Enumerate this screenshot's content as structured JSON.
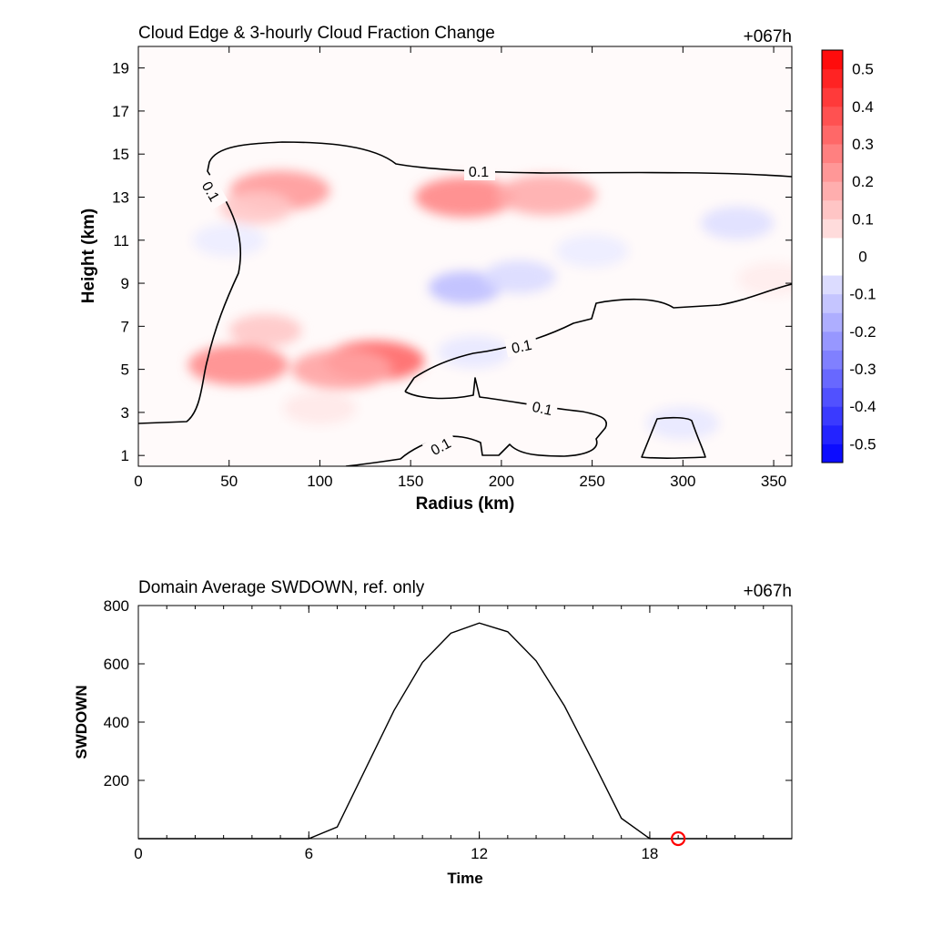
{
  "chart_data": [
    {
      "type": "heatmap",
      "title": "Cloud Edge & 3-hourly Cloud Fraction Change",
      "time_label": "+067h",
      "xlabel": "Radius (km)",
      "ylabel": "Height (km)",
      "xlim": [
        0,
        360
      ],
      "ylim": [
        0.5,
        20
      ],
      "xticks": [
        "0",
        "50",
        "100",
        "150",
        "200",
        "250",
        "300",
        "350"
      ],
      "yticks": [
        "1",
        "3",
        "5",
        "7",
        "9",
        "11",
        "13",
        "15",
        "17",
        "19"
      ],
      "colorbar": {
        "min": -0.55,
        "max": 0.55,
        "step": 0.05,
        "labels": [
          "0.5",
          "0.4",
          "0.3",
          "0.2",
          "0.1",
          "0",
          "-0.1",
          "-0.2",
          "-0.3",
          "-0.4",
          "-0.5"
        ],
        "high_color": "#ff0000",
        "low_color": "#0000ff"
      },
      "contour_level_label": "0.1",
      "anomalies": [
        {
          "r": 78,
          "z": 13.3,
          "value": 0.22
        },
        {
          "r": 65,
          "z": 12.5,
          "value": 0.12
        },
        {
          "r": 180,
          "z": 13.0,
          "value": 0.26
        },
        {
          "r": 225,
          "z": 13.1,
          "value": 0.18
        },
        {
          "r": 130,
          "z": 5.4,
          "value": 0.33
        },
        {
          "r": 112,
          "z": 5.0,
          "value": 0.2
        },
        {
          "r": 55,
          "z": 5.2,
          "value": 0.25
        },
        {
          "r": 70,
          "z": 6.8,
          "value": 0.12
        },
        {
          "r": 100,
          "z": 3.2,
          "value": 0.05
        },
        {
          "r": 180,
          "z": 8.8,
          "value": -0.14
        },
        {
          "r": 210,
          "z": 9.3,
          "value": -0.08
        },
        {
          "r": 185,
          "z": 5.8,
          "value": -0.05
        },
        {
          "r": 300,
          "z": 2.5,
          "value": -0.05
        },
        {
          "r": 330,
          "z": 11.8,
          "value": -0.07
        },
        {
          "r": 250,
          "z": 10.5,
          "value": -0.04
        },
        {
          "r": 50,
          "z": 11.0,
          "value": -0.04
        },
        {
          "r": 350,
          "z": 9.2,
          "value": 0.04
        }
      ]
    },
    {
      "type": "line",
      "title": "Domain Average SWDOWN, ref. only",
      "time_label": "+067h",
      "xlabel": "Time",
      "ylabel": "SWDOWN",
      "xlim": [
        0,
        23
      ],
      "ylim": [
        0,
        800
      ],
      "xticks": [
        "0",
        "6",
        "12",
        "18"
      ],
      "yticks": [
        "200",
        "400",
        "600",
        "800"
      ],
      "x": [
        0,
        1,
        2,
        3,
        4,
        5,
        6,
        7,
        8,
        9,
        10,
        11,
        12,
        13,
        14,
        15,
        16,
        17,
        18,
        19,
        20,
        21,
        22,
        23
      ],
      "values": [
        0,
        0,
        0,
        0,
        0,
        0,
        0,
        40,
        240,
        440,
        605,
        705,
        740,
        710,
        610,
        455,
        265,
        70,
        0,
        0,
        0,
        0,
        0,
        0
      ],
      "marker": {
        "x": 19,
        "y": 0,
        "color": "#ff0000"
      }
    }
  ]
}
